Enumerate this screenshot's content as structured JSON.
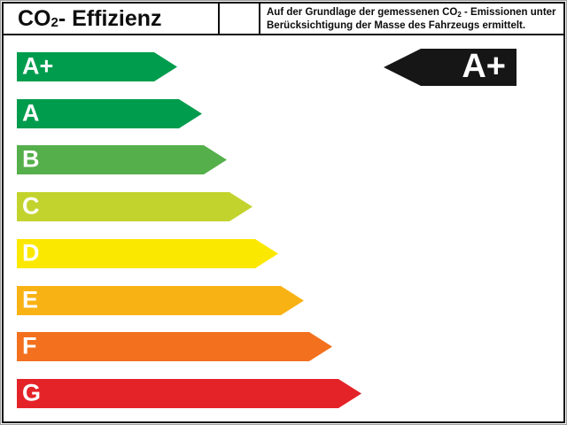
{
  "label": {
    "title": {
      "prefix": "CO",
      "sub": "2",
      "suffix": " - Effizienz"
    },
    "note": {
      "line1_prefix": "Auf der Grundlage der gemessenen CO",
      "line1_sub": "2",
      "line1_suffix": " - Emissionen unter",
      "line2": "Berücksichtigung der Masse des Fahrzeugs ermittelt."
    },
    "rating": {
      "value": "A+",
      "arrow_color": "#161616",
      "text_color": "#ffffff"
    },
    "classes": [
      {
        "label": "A+",
        "color": "#009C4D",
        "length": 181
      },
      {
        "label": "A",
        "color": "#009C4D",
        "length": 209
      },
      {
        "label": "B",
        "color": "#55AF4B",
        "length": 237
      },
      {
        "label": "C",
        "color": "#C3D32E",
        "length": 266
      },
      {
        "label": "D",
        "color": "#FBE800",
        "length": 295
      },
      {
        "label": "E",
        "color": "#F9B214",
        "length": 324
      },
      {
        "label": "F",
        "color": "#F3701E",
        "length": 356
      },
      {
        "label": "G",
        "color": "#E42329",
        "length": 389
      }
    ]
  },
  "chart_data": {
    "type": "bar",
    "orientation": "horizontal",
    "title": "CO2 - Effizienz",
    "subtitle": "Auf der Grundlage der gemessenen CO2 - Emissionen unter Berücksichtigung der Masse des Fahrzeugs ermittelt.",
    "categories": [
      "A+",
      "A",
      "B",
      "C",
      "D",
      "E",
      "F",
      "G"
    ],
    "values": [
      181,
      209,
      237,
      266,
      295,
      324,
      356,
      389
    ],
    "value_unit": "arrow length in px (relative efficiency scale)",
    "colors": [
      "#009C4D",
      "#009C4D",
      "#55AF4B",
      "#C3D32E",
      "#FBE800",
      "#F9B214",
      "#F3701E",
      "#E42329"
    ],
    "annotation": "Black indicator arrow marks vehicle rating: A+",
    "xlabel": "",
    "ylabel": "",
    "grid": false,
    "legend": false
  }
}
